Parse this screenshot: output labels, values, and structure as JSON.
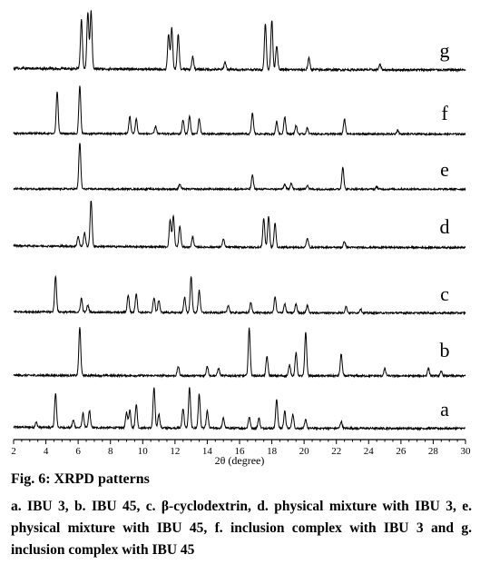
{
  "figure": {
    "caption_title": "Fig. 6: XRPD patterns",
    "caption_text": "a. IBU 3, b. IBU 45, c. β-cyclodextrin, d. physical mixture with IBU 3, e. physical mixture with IBU 45, f. inclusion complex with IBU 3 and g. inclusion complex with IBU 45"
  },
  "chart_data": {
    "type": "line",
    "title": "",
    "xlabel": "2θ  (degree)",
    "ylabel": "",
    "xlim": [
      2,
      30
    ],
    "x_ticks": [
      2,
      4,
      6,
      8,
      10,
      12,
      14,
      16,
      18,
      20,
      22,
      24,
      26,
      28,
      30
    ],
    "grid": false,
    "legend": "none",
    "series": [
      {
        "name": "a",
        "baseline": 0.06,
        "peaks": [
          [
            3.4,
            0.09
          ],
          [
            4.6,
            0.6
          ],
          [
            5.7,
            0.13
          ],
          [
            6.3,
            0.25
          ],
          [
            6.7,
            0.3
          ],
          [
            9.0,
            0.28
          ],
          [
            9.2,
            0.32
          ],
          [
            9.6,
            0.42
          ],
          [
            10.7,
            0.72
          ],
          [
            11.0,
            0.25
          ],
          [
            12.5,
            0.35
          ],
          [
            12.9,
            0.72
          ],
          [
            13.5,
            0.6
          ],
          [
            14.0,
            0.3
          ],
          [
            15.0,
            0.18
          ],
          [
            16.6,
            0.2
          ],
          [
            17.2,
            0.18
          ],
          [
            18.3,
            0.52
          ],
          [
            18.8,
            0.3
          ],
          [
            19.3,
            0.25
          ],
          [
            20.1,
            0.15
          ],
          [
            22.3,
            0.12
          ]
        ]
      },
      {
        "name": "b",
        "baseline": 0.03,
        "peaks": [
          [
            6.1,
            0.88
          ],
          [
            12.2,
            0.17
          ],
          [
            14.0,
            0.18
          ],
          [
            14.7,
            0.14
          ],
          [
            16.6,
            0.88
          ],
          [
            17.7,
            0.36
          ],
          [
            19.1,
            0.2
          ],
          [
            19.5,
            0.42
          ],
          [
            20.1,
            0.8
          ],
          [
            22.3,
            0.4
          ],
          [
            25.0,
            0.13
          ],
          [
            27.7,
            0.14
          ],
          [
            28.5,
            0.08
          ]
        ]
      },
      {
        "name": "c",
        "baseline": 0.07,
        "peaks": [
          [
            4.6,
            0.72
          ],
          [
            6.2,
            0.28
          ],
          [
            6.6,
            0.14
          ],
          [
            9.1,
            0.35
          ],
          [
            9.6,
            0.38
          ],
          [
            10.7,
            0.3
          ],
          [
            11.0,
            0.25
          ],
          [
            12.6,
            0.3
          ],
          [
            13.0,
            0.72
          ],
          [
            13.5,
            0.45
          ],
          [
            15.3,
            0.15
          ],
          [
            16.7,
            0.2
          ],
          [
            18.2,
            0.32
          ],
          [
            18.8,
            0.18
          ],
          [
            19.5,
            0.18
          ],
          [
            20.2,
            0.15
          ],
          [
            22.6,
            0.13
          ],
          [
            23.5,
            0.08
          ]
        ]
      },
      {
        "name": "d",
        "baseline": 0.1,
        "peaks": [
          [
            6.0,
            0.2
          ],
          [
            6.4,
            0.28
          ],
          [
            6.8,
            0.93
          ],
          [
            11.7,
            0.55
          ],
          [
            11.9,
            0.62
          ],
          [
            12.3,
            0.42
          ],
          [
            13.1,
            0.2
          ],
          [
            15.0,
            0.16
          ],
          [
            17.5,
            0.58
          ],
          [
            17.8,
            0.62
          ],
          [
            18.2,
            0.48
          ],
          [
            20.2,
            0.18
          ],
          [
            22.5,
            0.12
          ]
        ]
      },
      {
        "name": "e",
        "baseline": 0.02,
        "peaks": [
          [
            6.1,
            0.93
          ],
          [
            12.3,
            0.1
          ],
          [
            16.8,
            0.28
          ],
          [
            18.8,
            0.1
          ],
          [
            19.2,
            0.12
          ],
          [
            20.2,
            0.08
          ],
          [
            22.4,
            0.45
          ],
          [
            24.5,
            0.05
          ]
        ]
      },
      {
        "name": "f",
        "baseline": 0.04,
        "peaks": [
          [
            4.7,
            0.85
          ],
          [
            6.1,
            0.95
          ],
          [
            9.2,
            0.35
          ],
          [
            9.6,
            0.3
          ],
          [
            10.8,
            0.15
          ],
          [
            12.5,
            0.28
          ],
          [
            12.9,
            0.35
          ],
          [
            13.5,
            0.3
          ],
          [
            16.8,
            0.42
          ],
          [
            18.3,
            0.25
          ],
          [
            18.8,
            0.35
          ],
          [
            19.5,
            0.17
          ],
          [
            20.2,
            0.12
          ],
          [
            22.5,
            0.3
          ],
          [
            25.8,
            0.08
          ]
        ]
      },
      {
        "name": "g",
        "baseline": 0.07,
        "peaks": [
          [
            6.2,
            0.78
          ],
          [
            6.6,
            0.9
          ],
          [
            6.8,
            0.92
          ],
          [
            11.6,
            0.55
          ],
          [
            11.8,
            0.65
          ],
          [
            12.2,
            0.55
          ],
          [
            13.1,
            0.2
          ],
          [
            15.1,
            0.12
          ],
          [
            17.6,
            0.72
          ],
          [
            18.0,
            0.78
          ],
          [
            18.3,
            0.38
          ],
          [
            20.3,
            0.18
          ],
          [
            24.7,
            0.08
          ]
        ]
      }
    ]
  }
}
